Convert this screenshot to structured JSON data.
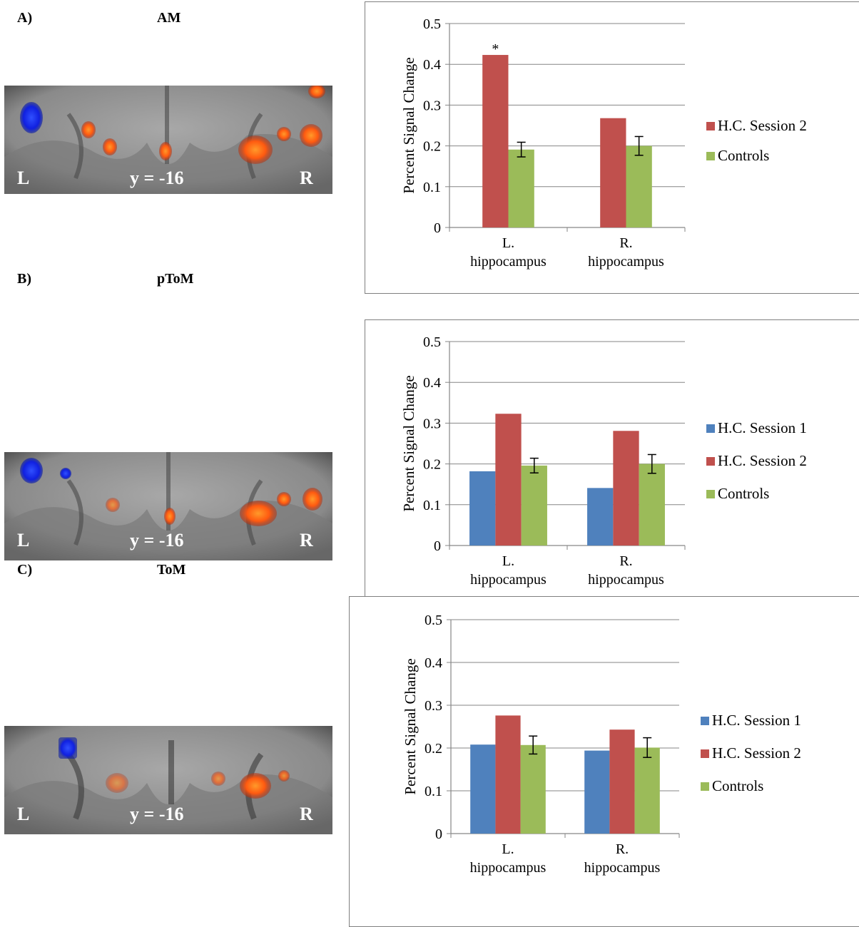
{
  "panels": [
    {
      "letter": "A)",
      "name": "AM"
    },
    {
      "letter": "B)",
      "name": "pToM"
    },
    {
      "letter": "C)",
      "name": "ToM"
    }
  ],
  "brain_labels": {
    "left": "L",
    "right": "R",
    "coord": "y = -16"
  },
  "colors": {
    "session1": "#4f81bd",
    "session2": "#c0504d",
    "controls": "#9bbb59"
  },
  "chart_data": [
    {
      "type": "bar",
      "ylabel": "Percent Signal Change",
      "ylim": [
        0,
        0.5
      ],
      "yticks": [
        "0",
        "0.1",
        "0.2",
        "0.3",
        "0.4",
        "0.5"
      ],
      "categories": [
        [
          "L.",
          "hippocampus"
        ],
        [
          "R.",
          "hippocampus"
        ]
      ],
      "series": [
        {
          "name": "H.C. Session 2",
          "values": [
            0.423,
            0.268
          ],
          "color": "#c0504d"
        },
        {
          "name": "Controls",
          "values": [
            0.191,
            0.2
          ],
          "errors": [
            0.018,
            0.023
          ],
          "color": "#9bbb59"
        }
      ],
      "annotation": "*",
      "legend": "right"
    },
    {
      "type": "bar",
      "ylabel": "Percent Signal Change",
      "ylim": [
        0,
        0.5
      ],
      "yticks": [
        "0",
        "0.1",
        "0.2",
        "0.3",
        "0.4",
        "0.5"
      ],
      "categories": [
        [
          "L.",
          "hippocampus"
        ],
        [
          "R.",
          "hippocampus"
        ]
      ],
      "series": [
        {
          "name": "H.C. Session 1",
          "values": [
            0.182,
            0.141
          ],
          "color": "#4f81bd"
        },
        {
          "name": "H.C. Session 2",
          "values": [
            0.323,
            0.281
          ],
          "color": "#c0504d"
        },
        {
          "name": "Controls",
          "values": [
            0.196,
            0.2
          ],
          "errors": [
            0.018,
            0.023
          ],
          "color": "#9bbb59"
        }
      ],
      "legend": "right"
    },
    {
      "type": "bar",
      "ylabel": "Percent Signal Change",
      "ylim": [
        0,
        0.5
      ],
      "yticks": [
        "0",
        "0.1",
        "0.2",
        "0.3",
        "0.4",
        "0.5"
      ],
      "categories": [
        [
          "L.",
          "hippocampus"
        ],
        [
          "R.",
          "hippocampus"
        ]
      ],
      "series": [
        {
          "name": "H.C. Session 1",
          "values": [
            0.208,
            0.194
          ],
          "color": "#4f81bd"
        },
        {
          "name": "H.C. Session 2",
          "values": [
            0.276,
            0.243
          ],
          "color": "#c0504d"
        },
        {
          "name": "Controls",
          "values": [
            0.207,
            0.201
          ],
          "errors": [
            0.021,
            0.023
          ],
          "color": "#9bbb59"
        }
      ],
      "legend": "right"
    }
  ]
}
